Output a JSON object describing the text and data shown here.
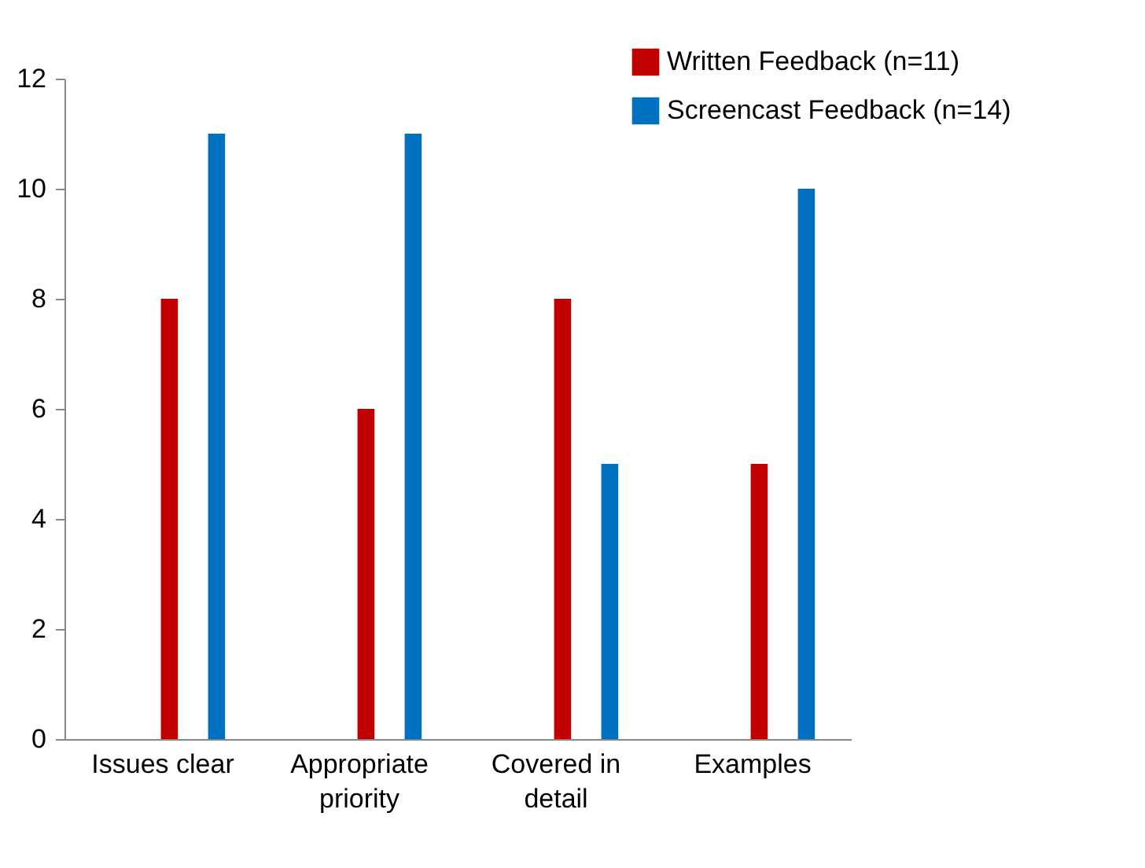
{
  "chart_data": {
    "type": "bar",
    "categories": [
      "Issues clear",
      "Appropriate priority",
      "Covered in detail",
      "Examples"
    ],
    "series": [
      {
        "name": "Written Feedback (n=11)",
        "color": "#c00000",
        "values": [
          8,
          6,
          8,
          5
        ]
      },
      {
        "name": "Screencast Feedback (n=14)",
        "color": "#0070c0",
        "values": [
          11,
          11,
          5,
          10
        ]
      }
    ],
    "ylim": [
      0,
      12
    ],
    "yticks": [
      0,
      2,
      4,
      6,
      8,
      10,
      12
    ],
    "grid": false,
    "legend": "top right"
  }
}
